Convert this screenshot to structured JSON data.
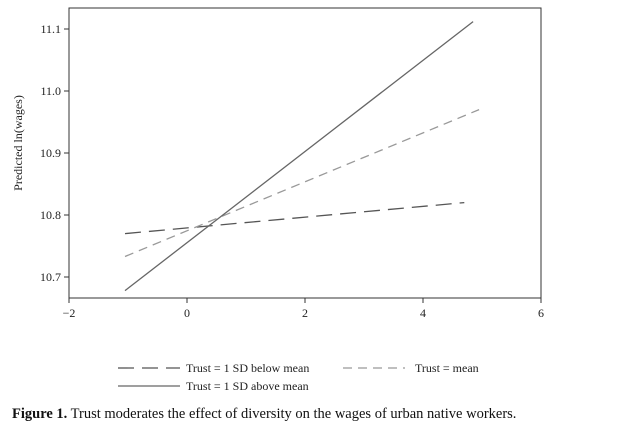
{
  "chart_data": {
    "type": "line",
    "ylabel": "Predicted ln(wages)",
    "xlabel": "",
    "xlim": [
      -2,
      6
    ],
    "ylim": [
      10.68,
      11.12
    ],
    "x_ticks": [
      -2,
      0,
      2,
      4,
      6
    ],
    "y_ticks": [
      10.7,
      10.8,
      10.9,
      11.0,
      11.1
    ],
    "x_tick_labels": [
      "−2",
      "0",
      "2",
      "4",
      "6"
    ],
    "y_tick_labels": [
      "10.7",
      "10.8",
      "10.9",
      "11.0",
      "11.1"
    ],
    "grid": false,
    "legend_position": "bottom",
    "series": [
      {
        "name": "Trust = 1 SD below mean",
        "x": [
          -1.05,
          4.7
        ],
        "y": [
          10.77,
          10.82
        ],
        "color": "#555555",
        "style": "long-dash"
      },
      {
        "name": "Trust = mean",
        "x": [
          -1.05,
          4.95
        ],
        "y": [
          10.733,
          10.97
        ],
        "color": "#999999",
        "style": "dash"
      },
      {
        "name": "Trust = 1 SD above mean",
        "x": [
          -1.05,
          4.85
        ],
        "y": [
          10.678,
          11.112
        ],
        "color": "#666666",
        "style": "solid"
      }
    ]
  },
  "caption": {
    "label": "Figure 1.",
    "text": " Trust moderates the effect of diversity on the wages of urban native workers."
  }
}
